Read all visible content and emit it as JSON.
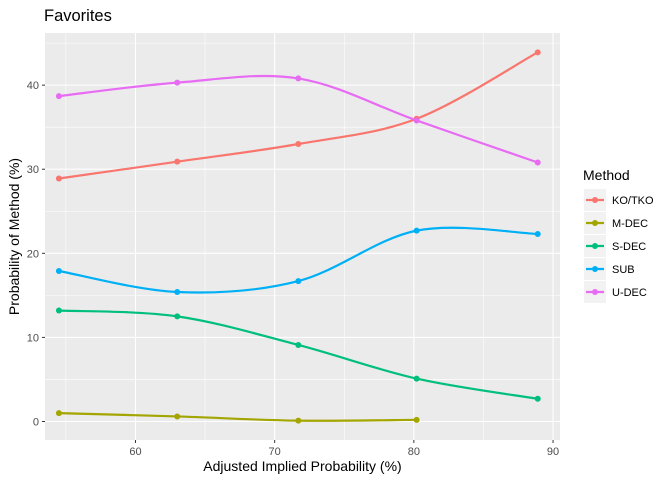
{
  "chart_data": {
    "type": "line",
    "title": "Favorites",
    "xlabel": "Adjusted Implied Probability (%)",
    "ylabel": "Probability of Method (%)",
    "xlim": [
      53.5,
      90.5
    ],
    "ylim": [
      -2.2,
      46.2
    ],
    "xticks": [
      60,
      70,
      80,
      90
    ],
    "yticks": [
      0,
      10,
      20,
      30,
      40
    ],
    "grid": true,
    "legend": {
      "title": "Method",
      "position": "right"
    },
    "series": [
      {
        "name": "KO/TKO",
        "color": "#F8766D",
        "x": [
          54.5,
          63.0,
          71.7,
          80.2,
          88.9
        ],
        "y": [
          28.9,
          30.9,
          33.0,
          36.0,
          43.9
        ]
      },
      {
        "name": "M-DEC",
        "color": "#A3A500",
        "x": [
          54.5,
          63.0,
          71.7,
          80.2
        ],
        "y": [
          1.0,
          0.6,
          0.1,
          0.2
        ]
      },
      {
        "name": "S-DEC",
        "color": "#00BF7D",
        "x": [
          54.5,
          63.0,
          71.7,
          80.2,
          88.9
        ],
        "y": [
          13.2,
          12.5,
          9.1,
          5.1,
          2.7
        ]
      },
      {
        "name": "SUB",
        "color": "#00B0F6",
        "x": [
          54.5,
          63.0,
          71.7,
          80.2,
          88.9
        ],
        "y": [
          17.9,
          15.4,
          16.7,
          22.7,
          22.3
        ]
      },
      {
        "name": "U-DEC",
        "color": "#E76BF3",
        "x": [
          54.5,
          63.0,
          71.7,
          80.2,
          88.9
        ],
        "y": [
          38.7,
          40.3,
          40.8,
          35.8,
          30.8
        ]
      }
    ]
  }
}
